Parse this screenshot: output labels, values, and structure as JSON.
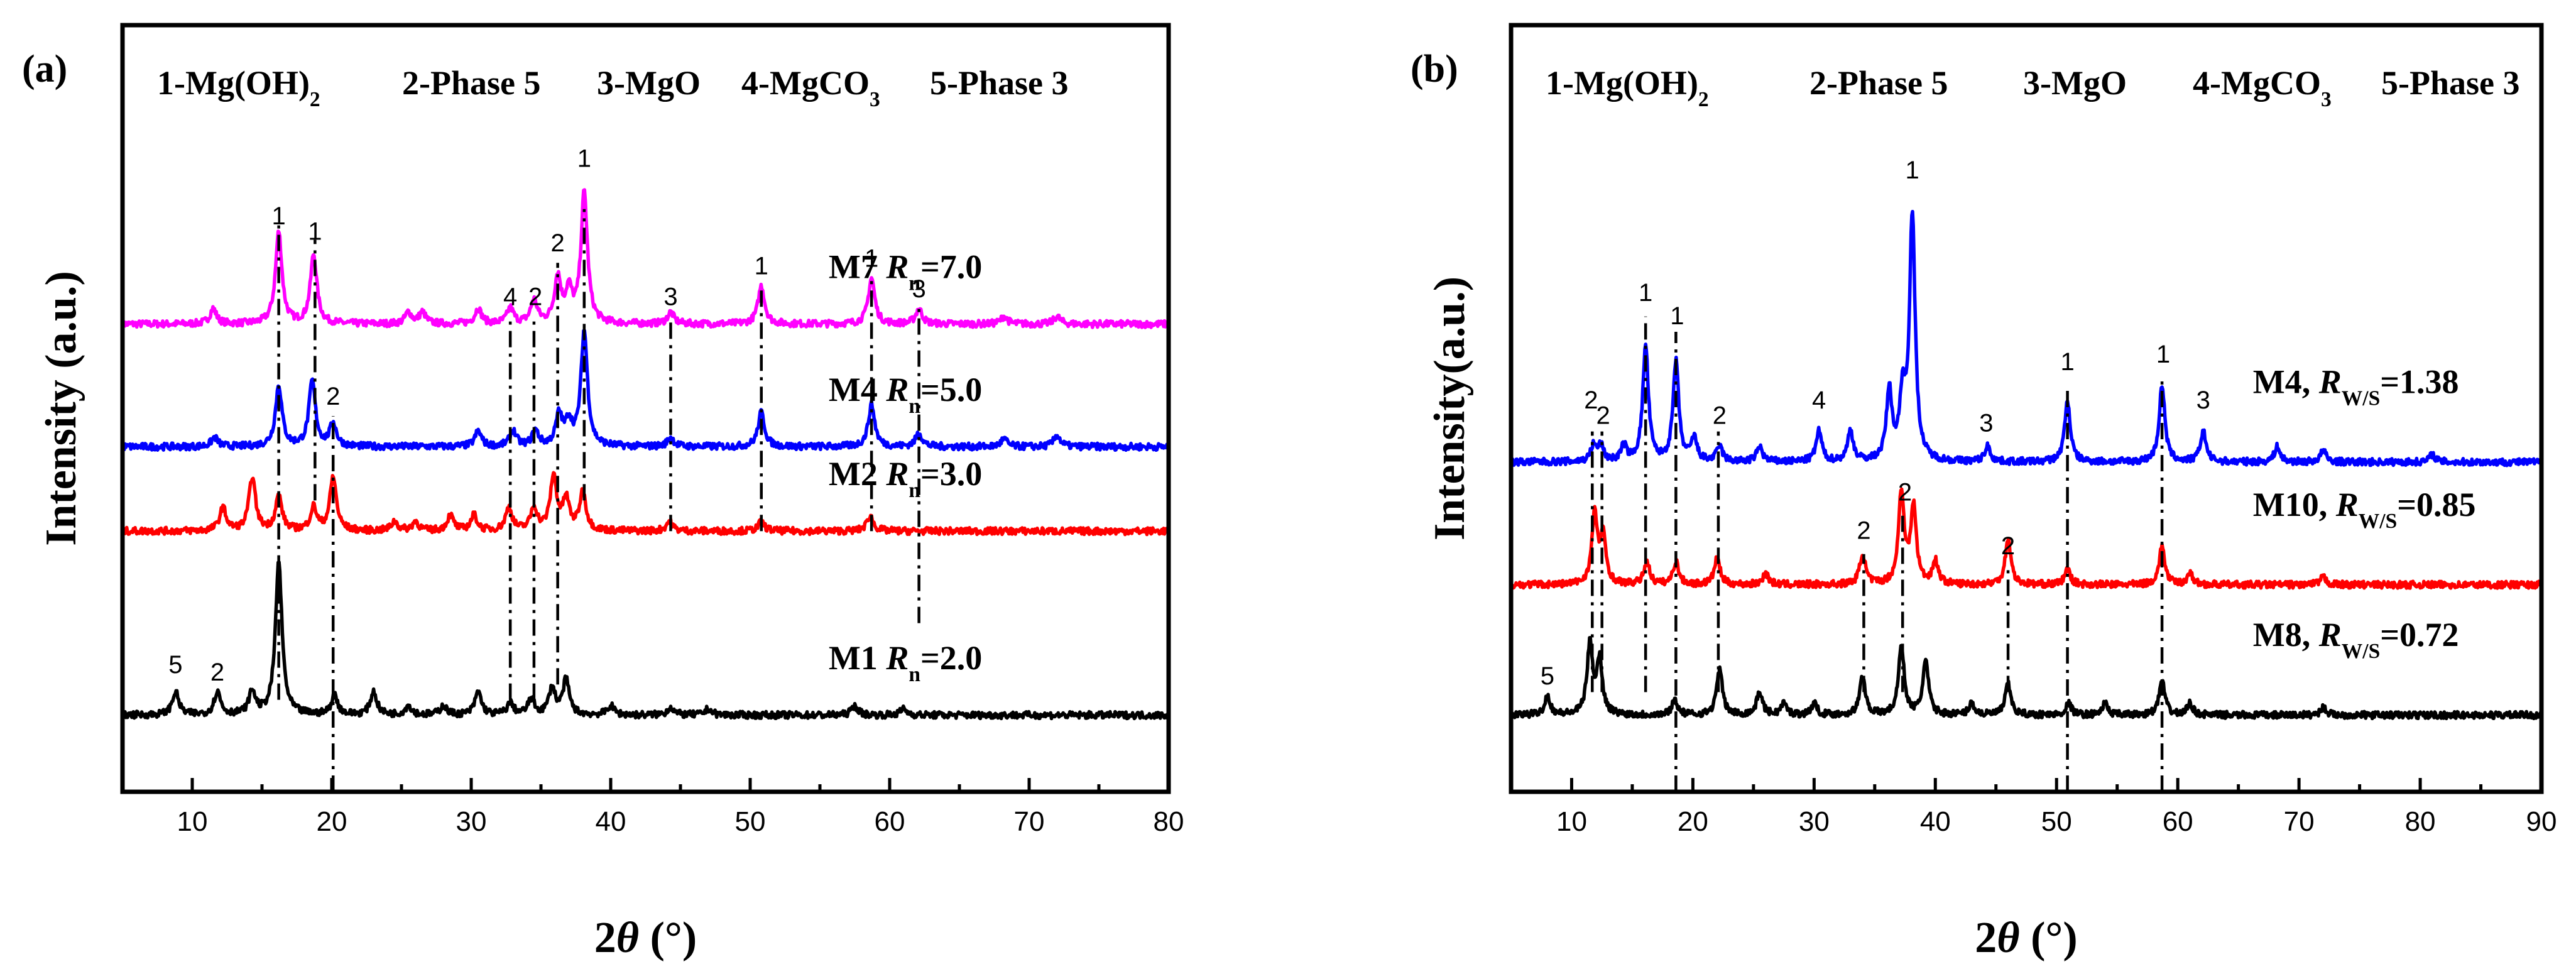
{
  "chart_data": [
    {
      "panel_label": "(a)",
      "type": "line",
      "xlabel_main": "2",
      "xlabel_theta": "θ",
      "xlabel_unit": " (°)",
      "ylabel": "Intensity (a.u.)",
      "xlim": [
        5,
        80
      ],
      "xticks": [
        "10",
        "20",
        "30",
        "40",
        "50",
        "60",
        "70",
        "80"
      ],
      "phase_legend": [
        {
          "text": "1-Mg(OH)",
          "sub": "2"
        },
        {
          "text": "2-Phase 5",
          "sub": ""
        },
        {
          "text": "3-MgO",
          "sub": ""
        },
        {
          "text": "4-MgCO",
          "sub": "3"
        },
        {
          "text": "5-Phase 3",
          "sub": ""
        }
      ],
      "series": [
        {
          "name": "M7",
          "param": "R",
          "param_sub": "n",
          "value": "=7.0",
          "color": "#ff00ff",
          "baseline": 0.61,
          "peaks": [
            [
              11.5,
              0.02
            ],
            [
              16.2,
              0.12
            ],
            [
              18.7,
              0.09
            ],
            [
              25.5,
              0.015
            ],
            [
              26.5,
              0.015
            ],
            [
              30.5,
              0.02
            ],
            [
              32.8,
              0.02
            ],
            [
              34.5,
              0.03
            ],
            [
              36.2,
              0.06
            ],
            [
              37.0,
              0.04
            ],
            [
              38.1,
              0.17
            ],
            [
              44.3,
              0.015
            ],
            [
              50.8,
              0.05
            ],
            [
              58.7,
              0.06
            ],
            [
              62.1,
              0.02
            ],
            [
              68.2,
              0.01
            ],
            [
              72.0,
              0.01
            ]
          ]
        },
        {
          "name": "M4",
          "param": "R",
          "param_sub": "n",
          "value": "=5.0",
          "color": "#0000ff",
          "baseline": 0.45,
          "peaks": [
            [
              11.6,
              0.012
            ],
            [
              16.2,
              0.08
            ],
            [
              18.6,
              0.085
            ],
            [
              20.1,
              0.03
            ],
            [
              30.5,
              0.02
            ],
            [
              33.0,
              0.02
            ],
            [
              34.6,
              0.02
            ],
            [
              36.3,
              0.04
            ],
            [
              37.0,
              0.03
            ],
            [
              38.1,
              0.15
            ],
            [
              44.3,
              0.012
            ],
            [
              50.8,
              0.045
            ],
            [
              58.7,
              0.055
            ],
            [
              62.1,
              0.018
            ],
            [
              68.2,
              0.01
            ],
            [
              72.0,
              0.015
            ]
          ]
        },
        {
          "name": "M2",
          "param": "R",
          "param_sub": "n",
          "value": "=3.0",
          "color": "#ff0000",
          "baseline": 0.34,
          "peaks": [
            [
              12.2,
              0.03
            ],
            [
              14.3,
              0.07
            ],
            [
              16.2,
              0.045
            ],
            [
              18.7,
              0.03
            ],
            [
              20.1,
              0.07
            ],
            [
              24.5,
              0.012
            ],
            [
              26.0,
              0.012
            ],
            [
              28.5,
              0.02
            ],
            [
              30.2,
              0.02
            ],
            [
              32.7,
              0.03
            ],
            [
              34.5,
              0.03
            ],
            [
              35.9,
              0.07
            ],
            [
              36.8,
              0.04
            ],
            [
              38.0,
              0.05
            ],
            [
              44.2,
              0.012
            ],
            [
              50.8,
              0.012
            ],
            [
              58.6,
              0.02
            ]
          ]
        },
        {
          "name": "M1",
          "param": "R",
          "param_sub": "n",
          "value": "=2.0",
          "color": "#000000",
          "baseline": 0.1,
          "peaks": [
            [
              8.8,
              0.03
            ],
            [
              11.8,
              0.03
            ],
            [
              14.3,
              0.03
            ],
            [
              16.2,
              0.2
            ],
            [
              20.2,
              0.025
            ],
            [
              23.0,
              0.03
            ],
            [
              25.5,
              0.012
            ],
            [
              28.0,
              0.012
            ],
            [
              30.5,
              0.03
            ],
            [
              32.8,
              0.015
            ],
            [
              34.3,
              0.02
            ],
            [
              35.8,
              0.035
            ],
            [
              36.8,
              0.045
            ],
            [
              40.0,
              0.012
            ],
            [
              44.3,
              0.01
            ],
            [
              47.0,
              0.008
            ],
            [
              57.5,
              0.012
            ],
            [
              61.0,
              0.008
            ]
          ]
        }
      ],
      "peak_labels": [
        {
          "x": 16.2,
          "y": 0.74,
          "text": "1"
        },
        {
          "x": 18.8,
          "y": 0.72,
          "text": "1"
        },
        {
          "x": 32.8,
          "y": 0.635,
          "text": "4"
        },
        {
          "x": 34.6,
          "y": 0.635,
          "text": "2"
        },
        {
          "x": 36.2,
          "y": 0.705,
          "text": "2"
        },
        {
          "x": 38.1,
          "y": 0.815,
          "text": "1"
        },
        {
          "x": 44.3,
          "y": 0.635,
          "text": "3"
        },
        {
          "x": 50.8,
          "y": 0.675,
          "text": "1"
        },
        {
          "x": 58.7,
          "y": 0.685,
          "text": "1"
        },
        {
          "x": 62.1,
          "y": 0.645,
          "text": "3"
        },
        {
          "x": 20.1,
          "y": 0.505,
          "text": "2"
        },
        {
          "x": 8.8,
          "y": 0.155,
          "text": "5"
        },
        {
          "x": 11.8,
          "y": 0.145,
          "text": "2"
        }
      ],
      "reference_lines": [
        {
          "x": 16.2,
          "y_range": [
            0.12,
            0.74
          ]
        },
        {
          "x": 18.8,
          "y_range": [
            0.38,
            0.72
          ]
        },
        {
          "x": 20.1,
          "y_range": [
            0.0,
            0.49
          ]
        },
        {
          "x": 32.8,
          "y_range": [
            0.12,
            0.62
          ]
        },
        {
          "x": 34.5,
          "y_range": [
            0.12,
            0.62
          ]
        },
        {
          "x": 36.2,
          "y_range": [
            0.14,
            0.69
          ]
        },
        {
          "x": 38.1,
          "y_range": [
            0.38,
            0.76
          ]
        },
        {
          "x": 44.3,
          "y_range": [
            0.34,
            0.62
          ]
        },
        {
          "x": 50.8,
          "y_range": [
            0.34,
            0.66
          ]
        },
        {
          "x": 58.7,
          "y_range": [
            0.34,
            0.67
          ]
        },
        {
          "x": 62.1,
          "y_range": [
            0.22,
            0.63
          ]
        }
      ]
    },
    {
      "panel_label": "(b)",
      "type": "line",
      "xlabel_main": "2",
      "xlabel_theta": "θ",
      "xlabel_unit": " (°)",
      "ylabel": "Intensity(a.u.)",
      "xlim": [
        5,
        90
      ],
      "xticks": [
        "10",
        "20",
        "30",
        "40",
        "50",
        "60",
        "70",
        "80",
        "90"
      ],
      "phase_legend": [
        {
          "text": "1-Mg(OH)",
          "sub": "2"
        },
        {
          "text": "2-Phase 5",
          "sub": ""
        },
        {
          "text": "3-MgO",
          "sub": ""
        },
        {
          "text": "4-MgCO",
          "sub": "3"
        },
        {
          "text": "5-Phase 3",
          "sub": ""
        }
      ],
      "series": [
        {
          "name": "M4,",
          "param": "R",
          "param_sub": "W/S",
          "value": "=1.38",
          "color": "#0000ff",
          "baseline": 0.43,
          "peaks": [
            [
              11.8,
              0.02
            ],
            [
              12.4,
              0.02
            ],
            [
              14.3,
              0.02
            ],
            [
              16.1,
              0.15
            ],
            [
              18.6,
              0.13
            ],
            [
              20.1,
              0.03
            ],
            [
              22.2,
              0.02
            ],
            [
              25.5,
              0.02
            ],
            [
              30.4,
              0.04
            ],
            [
              33.0,
              0.04
            ],
            [
              36.2,
              0.09
            ],
            [
              37.3,
              0.08
            ],
            [
              38.1,
              0.32
            ],
            [
              44.3,
              0.02
            ],
            [
              50.9,
              0.08
            ],
            [
              58.7,
              0.1
            ],
            [
              62.1,
              0.04
            ],
            [
              68.2,
              0.02
            ],
            [
              72.0,
              0.015
            ],
            [
              81.0,
              0.01
            ]
          ]
        },
        {
          "name": "M10,",
          "param": "R",
          "param_sub": "W/S",
          "value": "=0.85",
          "color": "#ff0000",
          "baseline": 0.27,
          "peaks": [
            [
              11.9,
              0.09
            ],
            [
              12.6,
              0.06
            ],
            [
              16.2,
              0.03
            ],
            [
              18.6,
              0.03
            ],
            [
              22.0,
              0.035
            ],
            [
              26.0,
              0.015
            ],
            [
              34.0,
              0.04
            ],
            [
              37.2,
              0.12
            ],
            [
              38.2,
              0.1
            ],
            [
              40.0,
              0.03
            ],
            [
              46.0,
              0.06
            ],
            [
              50.9,
              0.02
            ],
            [
              58.7,
              0.05
            ],
            [
              61.0,
              0.015
            ],
            [
              72.0,
              0.01
            ]
          ]
        },
        {
          "name": "M8,",
          "param": "R",
          "param_sub": "W/S",
          "value": "=0.72",
          "color": "#000000",
          "baseline": 0.1,
          "peaks": [
            [
              8.0,
              0.025
            ],
            [
              11.5,
              0.09
            ],
            [
              12.3,
              0.07
            ],
            [
              18.5,
              0.02
            ],
            [
              22.2,
              0.06
            ],
            [
              25.5,
              0.03
            ],
            [
              27.5,
              0.015
            ],
            [
              30.0,
              0.015
            ],
            [
              34.0,
              0.05
            ],
            [
              37.2,
              0.09
            ],
            [
              39.2,
              0.07
            ],
            [
              43.0,
              0.015
            ],
            [
              46.0,
              0.04
            ],
            [
              51.0,
              0.015
            ],
            [
              54.0,
              0.015
            ],
            [
              58.7,
              0.045
            ],
            [
              61.0,
              0.015
            ],
            [
              72.0,
              0.01
            ]
          ]
        }
      ],
      "peak_labels": [
        {
          "x": 16.1,
          "y": 0.64,
          "text": "1"
        },
        {
          "x": 18.7,
          "y": 0.61,
          "text": "1"
        },
        {
          "x": 38.1,
          "y": 0.8,
          "text": "1"
        },
        {
          "x": 50.9,
          "y": 0.55,
          "text": "1"
        },
        {
          "x": 58.8,
          "y": 0.56,
          "text": "1"
        },
        {
          "x": 62.1,
          "y": 0.5,
          "text": "3"
        },
        {
          "x": 44.2,
          "y": 0.47,
          "text": "3"
        },
        {
          "x": 30.4,
          "y": 0.5,
          "text": "4"
        },
        {
          "x": 11.6,
          "y": 0.5,
          "text": "2"
        },
        {
          "x": 12.6,
          "y": 0.48,
          "text": "2"
        },
        {
          "x": 22.2,
          "y": 0.48,
          "text": "2"
        },
        {
          "x": 34.1,
          "y": 0.33,
          "text": "2"
        },
        {
          "x": 37.5,
          "y": 0.38,
          "text": "2"
        },
        {
          "x": 46.0,
          "y": 0.31,
          "text": "2"
        },
        {
          "x": 8.0,
          "y": 0.14,
          "text": "5"
        }
      ],
      "reference_lines": [
        {
          "x": 11.7,
          "y_range": [
            0.13,
            0.47
          ]
        },
        {
          "x": 12.5,
          "y_range": [
            0.13,
            0.47
          ]
        },
        {
          "x": 16.1,
          "y_range": [
            0.13,
            0.62
          ]
        },
        {
          "x": 18.6,
          "y_range": [
            0.0,
            0.6
          ]
        },
        {
          "x": 22.1,
          "y_range": [
            0.13,
            0.47
          ]
        },
        {
          "x": 34.1,
          "y_range": [
            0.13,
            0.31
          ]
        },
        {
          "x": 37.3,
          "y_range": [
            0.13,
            0.36
          ]
        },
        {
          "x": 46.0,
          "y_range": [
            0.13,
            0.29
          ]
        },
        {
          "x": 50.9,
          "y_range": [
            0.0,
            0.53
          ]
        },
        {
          "x": 58.7,
          "y_range": [
            0.0,
            0.54
          ]
        }
      ]
    }
  ]
}
